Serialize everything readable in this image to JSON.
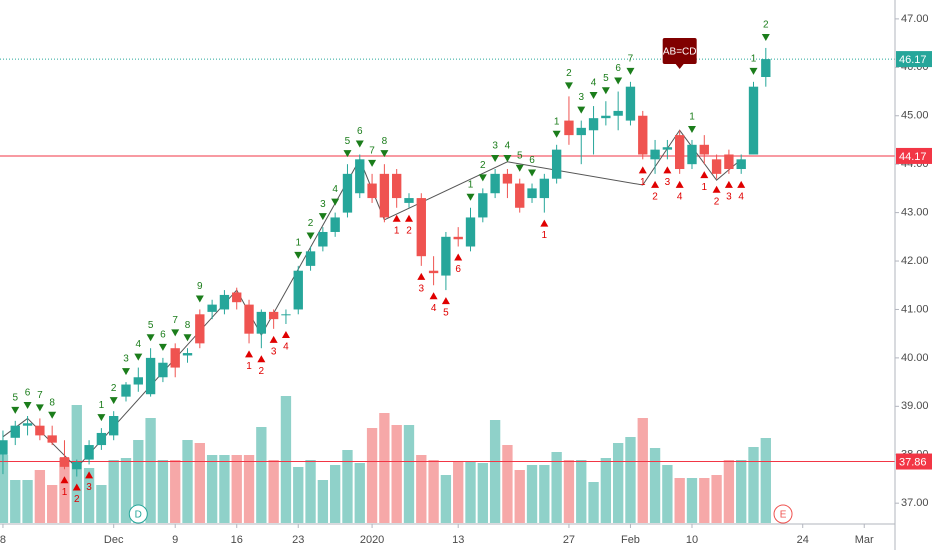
{
  "chart_data": {
    "type": "candlestick",
    "open": [
      38.0,
      38.35,
      38.6,
      38.6,
      38.4,
      37.95,
      37.7,
      37.9,
      38.2,
      38.4,
      39.2,
      39.45,
      39.25,
      39.6,
      40.2,
      40.05,
      40.9,
      40.95,
      41.0,
      41.35,
      41.1,
      40.5,
      40.95,
      40.9,
      41.0,
      41.9,
      42.3,
      42.6,
      43.0,
      43.4,
      43.6,
      43.8,
      43.8,
      43.2,
      43.3,
      41.8,
      41.7,
      42.5,
      42.3,
      42.9,
      43.4,
      43.8,
      43.6,
      43.3,
      43.3,
      43.7,
      44.9,
      44.6,
      44.7,
      44.95,
      45.0,
      44.9,
      45.0,
      44.1,
      44.3,
      44.6,
      44.0,
      44.4,
      44.1,
      44.2,
      43.9,
      44.2,
      45.8
    ],
    "high": [
      38.5,
      38.7,
      38.8,
      38.75,
      38.6,
      38.3,
      37.9,
      38.3,
      38.55,
      38.9,
      39.5,
      39.8,
      40.2,
      40.0,
      40.3,
      40.2,
      41.0,
      41.2,
      41.4,
      41.45,
      41.2,
      41.0,
      41.0,
      41.0,
      41.9,
      42.3,
      42.7,
      43.0,
      44.0,
      44.2,
      43.8,
      44.0,
      43.9,
      43.4,
      43.4,
      42.1,
      42.6,
      42.7,
      43.1,
      43.5,
      43.9,
      43.9,
      43.7,
      43.6,
      43.8,
      44.4,
      45.4,
      44.9,
      45.2,
      45.3,
      45.5,
      45.7,
      45.1,
      44.5,
      44.5,
      44.7,
      44.5,
      44.6,
      44.2,
      44.3,
      44.2,
      45.7,
      46.4
    ],
    "low": [
      37.6,
      38.2,
      38.4,
      38.3,
      38.2,
      37.7,
      37.55,
      37.8,
      38.1,
      38.3,
      39.1,
      39.3,
      39.2,
      39.5,
      39.6,
      39.9,
      40.2,
      40.8,
      40.9,
      41.0,
      40.3,
      40.2,
      40.6,
      40.7,
      40.9,
      41.8,
      42.2,
      42.5,
      42.9,
      43.3,
      43.2,
      42.8,
      43.1,
      43.1,
      41.9,
      41.5,
      41.4,
      42.3,
      42.2,
      42.8,
      43.3,
      43.3,
      43.0,
      43.2,
      43.0,
      43.6,
      44.4,
      44.0,
      44.2,
      44.8,
      44.7,
      44.8,
      44.1,
      43.8,
      44.1,
      43.8,
      43.9,
      44.0,
      43.7,
      43.8,
      43.8,
      44.2,
      45.6
    ],
    "close": [
      38.3,
      38.6,
      38.65,
      38.4,
      38.25,
      37.75,
      37.85,
      38.2,
      38.45,
      38.8,
      39.45,
      39.6,
      40.0,
      39.9,
      39.8,
      40.1,
      40.3,
      41.1,
      41.3,
      41.15,
      40.5,
      40.95,
      40.8,
      40.9,
      41.8,
      42.2,
      42.6,
      42.9,
      43.8,
      44.1,
      43.3,
      42.9,
      43.3,
      43.3,
      42.1,
      41.75,
      42.5,
      42.45,
      42.9,
      43.4,
      43.8,
      43.6,
      43.1,
      43.5,
      43.7,
      44.3,
      44.6,
      44.75,
      44.95,
      45.0,
      45.1,
      45.6,
      44.2,
      44.3,
      44.35,
      43.9,
      44.4,
      44.2,
      43.8,
      43.9,
      44.1,
      45.6,
      46.17
    ],
    "volume": [
      68,
      43,
      43,
      53,
      38,
      65,
      118,
      55,
      38,
      63,
      65,
      83,
      105,
      63,
      63,
      83,
      80,
      68,
      68,
      68,
      68,
      96,
      63,
      127,
      56,
      63,
      43,
      58,
      73,
      60,
      95,
      110,
      98,
      98,
      68,
      63,
      48,
      61,
      61,
      60,
      103,
      78,
      53,
      58,
      58,
      71,
      63,
      63,
      41,
      65,
      80,
      86,
      105,
      75,
      58,
      45,
      45,
      45,
      48,
      63,
      63,
      76,
      85
    ],
    "up_color": "#26a69a",
    "down_color": "#ef5350",
    "up_volume_color": "#8fd1c9",
    "down_volume_color": "#f6a8a8",
    "xlim": [
      -0.24,
      72.5
    ],
    "xticks": [
      {
        "value": 0,
        "label": "8"
      },
      {
        "value": 9,
        "label": "Dec"
      },
      {
        "value": 14,
        "label": "9"
      },
      {
        "value": 19,
        "label": "16"
      },
      {
        "value": 24,
        "label": "23"
      },
      {
        "value": 30,
        "label": "2020"
      },
      {
        "value": 37,
        "label": "13"
      },
      {
        "value": 46,
        "label": "27"
      },
      {
        "value": 51,
        "label": "Feb"
      },
      {
        "value": 56,
        "label": "10"
      },
      {
        "value": 65,
        "label": "24"
      },
      {
        "value": 70,
        "label": "Mar"
      }
    ],
    "ylim": [
      36.57,
      47.39
    ],
    "yticks": [
      {
        "value": 37,
        "label": "37.00"
      },
      {
        "value": 38,
        "label": "38.00"
      },
      {
        "value": 39,
        "label": "39.00"
      },
      {
        "value": 40,
        "label": "40.00"
      },
      {
        "value": 41,
        "label": "41.00"
      },
      {
        "value": 42,
        "label": "42.00"
      },
      {
        "value": 43,
        "label": "43.00"
      },
      {
        "value": 44,
        "label": "44.00"
      },
      {
        "value": 45,
        "label": "45.00"
      },
      {
        "value": 46,
        "label": "46.00"
      },
      {
        "value": 47,
        "label": "47.00"
      }
    ],
    "price_lines": [
      {
        "value": 46.17,
        "color": "#26a69a",
        "style": "dotted"
      },
      {
        "value": 44.17,
        "color": "#f23645",
        "style": "solid"
      },
      {
        "value": 37.86,
        "color": "#f23645",
        "style": "solid"
      }
    ],
    "zigzag": {
      "x": [
        0,
        2,
        6,
        19,
        21,
        29,
        31,
        41,
        52,
        55,
        58,
        60
      ],
      "y": [
        38.37,
        38.75,
        37.73,
        41.4,
        40.47,
        44.1,
        42.85,
        44.05,
        43.57,
        44.7,
        43.67,
        44.1
      ]
    },
    "markers": [
      {
        "index": 1,
        "label": "5",
        "side": "above"
      },
      {
        "index": 2,
        "label": "6",
        "side": "above"
      },
      {
        "index": 3,
        "label": "7",
        "side": "above"
      },
      {
        "index": 4,
        "label": "8",
        "side": "above"
      },
      {
        "index": 5,
        "label": "1",
        "side": "below"
      },
      {
        "index": 6,
        "label": "2",
        "side": "below"
      },
      {
        "index": 7,
        "label": "3",
        "side": "below"
      },
      {
        "index": 8,
        "label": "1",
        "side": "above"
      },
      {
        "index": 9,
        "label": "2",
        "side": "above"
      },
      {
        "index": 10,
        "label": "3",
        "side": "above"
      },
      {
        "index": 11,
        "label": "4",
        "side": "above"
      },
      {
        "index": 12,
        "label": "5",
        "side": "above"
      },
      {
        "index": 13,
        "label": "6",
        "side": "above"
      },
      {
        "index": 14,
        "label": "7",
        "side": "above"
      },
      {
        "index": 15,
        "label": "8",
        "side": "above"
      },
      {
        "index": 16,
        "label": "9",
        "side": "above"
      },
      {
        "index": 20,
        "label": "1",
        "side": "below"
      },
      {
        "index": 21,
        "label": "2",
        "side": "below"
      },
      {
        "index": 22,
        "label": "3",
        "side": "below"
      },
      {
        "index": 23,
        "label": "4",
        "side": "below"
      },
      {
        "index": 24,
        "label": "1",
        "side": "above"
      },
      {
        "index": 25,
        "label": "2",
        "side": "above"
      },
      {
        "index": 26,
        "label": "3",
        "side": "above"
      },
      {
        "index": 27,
        "label": "4",
        "side": "above"
      },
      {
        "index": 28,
        "label": "5",
        "side": "above"
      },
      {
        "index": 29,
        "label": "6",
        "side": "above"
      },
      {
        "index": 30,
        "label": "7",
        "side": "above"
      },
      {
        "index": 31,
        "label": "8",
        "side": "above"
      },
      {
        "index": 32,
        "label": "1",
        "side": "below"
      },
      {
        "index": 33,
        "label": "2",
        "side": "below"
      },
      {
        "index": 34,
        "label": "3",
        "side": "below"
      },
      {
        "index": 35,
        "label": "4",
        "side": "below"
      },
      {
        "index": 36,
        "label": "5",
        "side": "below"
      },
      {
        "index": 37,
        "label": "6",
        "side": "below"
      },
      {
        "index": 38,
        "label": "1",
        "side": "above"
      },
      {
        "index": 39,
        "label": "2",
        "side": "above"
      },
      {
        "index": 40,
        "label": "3",
        "side": "above"
      },
      {
        "index": 41,
        "label": "4",
        "side": "above"
      },
      {
        "index": 42,
        "label": "5",
        "side": "above"
      },
      {
        "index": 43,
        "label": "6",
        "side": "above"
      },
      {
        "index": 44,
        "label": "1",
        "side": "below"
      },
      {
        "index": 45,
        "label": "1",
        "side": "above"
      },
      {
        "index": 46,
        "label": "2",
        "side": "above"
      },
      {
        "index": 47,
        "label": "3",
        "side": "above"
      },
      {
        "index": 48,
        "label": "4",
        "side": "above"
      },
      {
        "index": 49,
        "label": "5",
        "side": "above"
      },
      {
        "index": 50,
        "label": "6",
        "side": "above"
      },
      {
        "index": 51,
        "label": "7",
        "side": "above"
      },
      {
        "index": 52,
        "label": "1",
        "side": "below"
      },
      {
        "index": 53,
        "label": "2",
        "side": "below"
      },
      {
        "index": 54,
        "label": "3",
        "side": "below"
      },
      {
        "index": 55,
        "label": "4",
        "side": "below"
      },
      {
        "index": 56,
        "label": "1",
        "side": "above"
      },
      {
        "index": 57,
        "label": "1",
        "side": "below"
      },
      {
        "index": 58,
        "label": "2",
        "side": "below"
      },
      {
        "index": 59,
        "label": "3",
        "side": "below"
      },
      {
        "index": 60,
        "label": "4",
        "side": "below"
      },
      {
        "index": 61,
        "label": "1",
        "side": "above"
      },
      {
        "index": 62,
        "label": "2",
        "side": "above"
      }
    ],
    "pattern_label": {
      "label": "AB=CD",
      "index": 55
    },
    "point_labels": [
      {
        "label": "D",
        "index": 11,
        "color": "#26a69a"
      },
      {
        "label": "E",
        "index": 63.4,
        "color": "#ef5350"
      }
    ]
  }
}
